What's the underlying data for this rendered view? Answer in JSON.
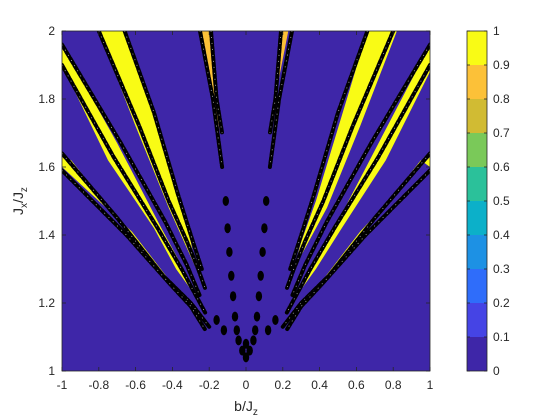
{
  "chart_data": {
    "type": "heatmap",
    "title": "",
    "xlabel": "b/J",
    "xlabel_sub": "z",
    "ylabel": "J",
    "ylabel_sub_x": "x",
    "ylabel_mid": "/J",
    "ylabel_sub_z": "z",
    "xlim": [
      -1,
      1
    ],
    "ylim": [
      1,
      2
    ],
    "x_ticks": [
      "-1",
      "-0.8",
      "-0.6",
      "-0.4",
      "-0.2",
      "0",
      "0.2",
      "0.4",
      "0.6",
      "0.8",
      "1"
    ],
    "x_tick_values": [
      -1,
      -0.8,
      -0.6,
      -0.4,
      -0.2,
      0,
      0.2,
      0.4,
      0.6,
      0.8,
      1
    ],
    "y_ticks": [
      "1",
      "1.2",
      "1.4",
      "1.6",
      "1.8",
      "2"
    ],
    "y_tick_values": [
      1,
      1.2,
      1.4,
      1.6,
      1.8,
      2
    ],
    "background_value": 0,
    "background_color": "#3e26a8",
    "colorbar": {
      "min": 0,
      "max": 1,
      "levels": 10,
      "tick_labels": [
        "0",
        "0.1",
        "0.2",
        "0.3",
        "0.4",
        "0.5",
        "0.6",
        "0.7",
        "0.8",
        "0.9",
        "1"
      ],
      "tick_values": [
        0,
        0.1,
        0.2,
        0.3,
        0.4,
        0.5,
        0.6,
        0.7,
        0.8,
        0.9,
        1
      ],
      "colors": [
        "#3e26a8",
        "#4544e5",
        "#2f6dfa",
        "#1d91e4",
        "#0cb0c9",
        "#2bc19a",
        "#7ac959",
        "#d1bb33",
        "#fcc138",
        "#f9fb15"
      ]
    },
    "bands": [
      {
        "name": "outer-left",
        "value": 1.0,
        "polygon": [
          [
            -0.95,
            1.62
          ],
          [
            -0.6,
            1.38
          ],
          [
            -0.4,
            1.24
          ],
          [
            -0.3,
            1.2
          ],
          [
            -0.42,
            1.27
          ],
          [
            -0.62,
            1.41
          ],
          [
            -1.0,
            1.6
          ],
          [
            -1.0,
            1.63
          ]
        ]
      },
      {
        "name": "second-left",
        "value": 1.0,
        "polygon": [
          [
            -1.0,
            1.9
          ],
          [
            -0.75,
            1.62
          ],
          [
            -0.5,
            1.42
          ],
          [
            -0.38,
            1.3
          ],
          [
            -0.3,
            1.24
          ],
          [
            -0.36,
            1.32
          ],
          [
            -0.46,
            1.42
          ],
          [
            -0.7,
            1.67
          ],
          [
            -1.0,
            1.96
          ]
        ]
      },
      {
        "name": "third-left",
        "value": 1.0,
        "polygon": [
          [
            -0.8,
            2.0
          ],
          [
            -0.6,
            1.72
          ],
          [
            -0.42,
            1.48
          ],
          [
            -0.32,
            1.36
          ],
          [
            -0.27,
            1.3
          ],
          [
            -0.3,
            1.38
          ],
          [
            -0.36,
            1.5
          ],
          [
            -0.5,
            1.75
          ],
          [
            -0.66,
            2.0
          ]
        ]
      },
      {
        "name": "inner-left",
        "value": 0.85,
        "polygon": [
          [
            -0.25,
            2.0
          ],
          [
            -0.17,
            1.78
          ],
          [
            -0.14,
            1.7
          ],
          [
            -0.16,
            1.8
          ],
          [
            -0.19,
            2.0
          ]
        ]
      },
      {
        "name": "inner-right",
        "value": 0.85,
        "polygon": [
          [
            0.19,
            2.0
          ],
          [
            0.16,
            1.82
          ],
          [
            0.13,
            1.7
          ],
          [
            0.15,
            1.78
          ],
          [
            0.23,
            2.0
          ]
        ]
      },
      {
        "name": "third-right",
        "value": 1.0,
        "polygon": [
          [
            0.66,
            2.0
          ],
          [
            0.52,
            1.75
          ],
          [
            0.38,
            1.5
          ],
          [
            0.3,
            1.38
          ],
          [
            0.26,
            1.3
          ],
          [
            0.32,
            1.36
          ],
          [
            0.44,
            1.48
          ],
          [
            0.62,
            1.72
          ],
          [
            0.82,
            2.0
          ]
        ]
      },
      {
        "name": "second-right",
        "value": 1.0,
        "polygon": [
          [
            1.0,
            1.96
          ],
          [
            0.72,
            1.67
          ],
          [
            0.48,
            1.42
          ],
          [
            0.36,
            1.32
          ],
          [
            0.3,
            1.24
          ],
          [
            0.38,
            1.3
          ],
          [
            0.52,
            1.42
          ],
          [
            0.76,
            1.62
          ],
          [
            1.0,
            1.88
          ]
        ]
      },
      {
        "name": "outer-right",
        "value": 1.0,
        "polygon": [
          [
            1.0,
            1.63
          ],
          [
            0.62,
            1.41
          ],
          [
            0.42,
            1.27
          ],
          [
            0.3,
            1.2
          ],
          [
            0.4,
            1.24
          ],
          [
            0.6,
            1.38
          ],
          [
            0.95,
            1.62
          ],
          [
            1.0,
            1.6
          ]
        ]
      }
    ],
    "contour_lines": [
      {
        "name": "contour-a",
        "points": [
          [
            -1.0,
            1.64
          ],
          [
            -0.7,
            1.45
          ],
          [
            -0.45,
            1.28
          ],
          [
            -0.3,
            1.2
          ],
          [
            -0.2,
            1.13
          ]
        ]
      },
      {
        "name": "contour-b",
        "points": [
          [
            -1.0,
            1.59
          ],
          [
            -0.65,
            1.4
          ],
          [
            -0.42,
            1.26
          ],
          [
            -0.3,
            1.19
          ],
          [
            -0.22,
            1.12
          ]
        ]
      },
      {
        "name": "contour-c",
        "points": [
          [
            -1.0,
            1.9
          ],
          [
            -0.72,
            1.63
          ],
          [
            -0.48,
            1.42
          ],
          [
            -0.35,
            1.3
          ],
          [
            -0.27,
            1.22
          ],
          [
            -0.22,
            1.17
          ]
        ]
      },
      {
        "name": "contour-d",
        "points": [
          [
            -1.0,
            1.96
          ],
          [
            -0.68,
            1.67
          ],
          [
            -0.44,
            1.44
          ],
          [
            -0.32,
            1.31
          ],
          [
            -0.25,
            1.22
          ]
        ]
      },
      {
        "name": "contour-e",
        "points": [
          [
            -0.8,
            2.0
          ],
          [
            -0.58,
            1.72
          ],
          [
            -0.42,
            1.5
          ],
          [
            -0.32,
            1.38
          ],
          [
            -0.26,
            1.3
          ],
          [
            -0.22,
            1.24
          ]
        ]
      },
      {
        "name": "contour-f",
        "points": [
          [
            -0.66,
            2.0
          ],
          [
            -0.5,
            1.76
          ],
          [
            -0.37,
            1.52
          ],
          [
            -0.3,
            1.4
          ],
          [
            -0.24,
            1.3
          ]
        ]
      },
      {
        "name": "contour-g",
        "points": [
          [
            -0.25,
            2.0
          ],
          [
            -0.18,
            1.8
          ],
          [
            -0.15,
            1.68
          ],
          [
            -0.13,
            1.6
          ]
        ]
      },
      {
        "name": "contour-h",
        "points": [
          [
            -0.19,
            2.0
          ],
          [
            -0.16,
            1.8
          ],
          [
            -0.13,
            1.7
          ]
        ]
      },
      {
        "name": "contour-i",
        "points": [
          [
            0.19,
            2.0
          ],
          [
            0.16,
            1.8
          ],
          [
            0.13,
            1.7
          ]
        ]
      },
      {
        "name": "contour-j",
        "points": [
          [
            0.25,
            2.0
          ],
          [
            0.18,
            1.8
          ],
          [
            0.15,
            1.68
          ],
          [
            0.13,
            1.6
          ]
        ]
      },
      {
        "name": "contour-k",
        "points": [
          [
            0.66,
            2.0
          ],
          [
            0.5,
            1.76
          ],
          [
            0.37,
            1.52
          ],
          [
            0.3,
            1.4
          ],
          [
            0.24,
            1.3
          ]
        ]
      },
      {
        "name": "contour-l",
        "points": [
          [
            0.8,
            2.0
          ],
          [
            0.58,
            1.72
          ],
          [
            0.42,
            1.5
          ],
          [
            0.32,
            1.38
          ],
          [
            0.26,
            1.3
          ],
          [
            0.22,
            1.24
          ]
        ]
      },
      {
        "name": "contour-m",
        "points": [
          [
            1.0,
            1.96
          ],
          [
            0.68,
            1.67
          ],
          [
            0.44,
            1.44
          ],
          [
            0.32,
            1.31
          ],
          [
            0.25,
            1.22
          ]
        ]
      },
      {
        "name": "contour-n",
        "points": [
          [
            1.0,
            1.9
          ],
          [
            0.72,
            1.63
          ],
          [
            0.48,
            1.42
          ],
          [
            0.35,
            1.3
          ],
          [
            0.27,
            1.22
          ],
          [
            0.22,
            1.17
          ]
        ]
      },
      {
        "name": "contour-o",
        "points": [
          [
            1.0,
            1.64
          ],
          [
            0.7,
            1.45
          ],
          [
            0.45,
            1.28
          ],
          [
            0.3,
            1.2
          ],
          [
            0.2,
            1.13
          ]
        ]
      },
      {
        "name": "contour-p",
        "points": [
          [
            1.0,
            1.59
          ],
          [
            0.65,
            1.4
          ],
          [
            0.42,
            1.26
          ],
          [
            0.3,
            1.19
          ],
          [
            0.22,
            1.12
          ]
        ]
      }
    ],
    "dots": [
      [
        -0.11,
        1.5
      ],
      [
        -0.1,
        1.42
      ],
      [
        -0.09,
        1.35
      ],
      [
        -0.08,
        1.28
      ],
      [
        -0.07,
        1.22
      ],
      [
        -0.06,
        1.16
      ],
      [
        0.11,
        1.5
      ],
      [
        0.1,
        1.42
      ],
      [
        0.09,
        1.35
      ],
      [
        0.08,
        1.28
      ],
      [
        0.07,
        1.22
      ],
      [
        0.06,
        1.16
      ],
      [
        -0.04,
        1.09
      ],
      [
        -0.02,
        1.06
      ],
      [
        0.0,
        1.04
      ],
      [
        0.02,
        1.06
      ],
      [
        0.04,
        1.09
      ],
      [
        -0.12,
        1.12
      ],
      [
        -0.16,
        1.15
      ],
      [
        0.12,
        1.12
      ],
      [
        0.16,
        1.15
      ],
      [
        -0.05,
        1.12
      ],
      [
        0.05,
        1.12
      ],
      [
        0.0,
        1.08
      ]
    ]
  }
}
